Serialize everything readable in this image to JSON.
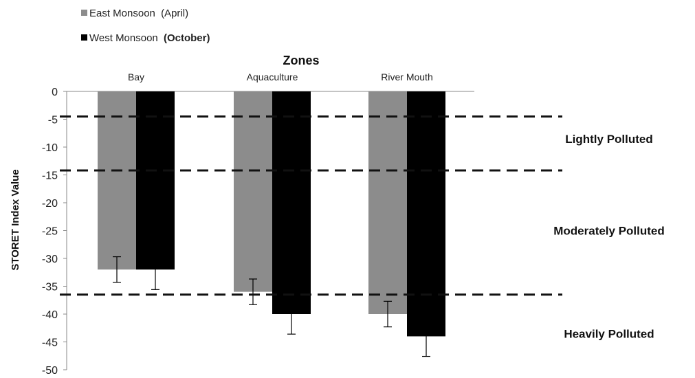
{
  "chart_data": {
    "type": "bar",
    "x_axis_title": "Zones",
    "ylabel": "STORET Index Value",
    "ylim": [
      -50,
      0
    ],
    "y_ticks": [
      0,
      -5,
      -10,
      -15,
      -20,
      -25,
      -30,
      -35,
      -40,
      -45,
      -50
    ],
    "categories": [
      "Bay",
      "Aquaculture",
      "River Mouth"
    ],
    "series": [
      {
        "name": "East Monsoon (April)",
        "legend_name_part": "East Monsoon",
        "legend_suffix": "(April)",
        "color": "#8c8c8c",
        "values": [
          -32,
          -36,
          -40
        ],
        "error": [
          2.3,
          2.3,
          2.3
        ]
      },
      {
        "name": "West Monsoon (October)",
        "legend_name_part": "West Monsoon",
        "legend_suffix": "(October)",
        "color": "#000000",
        "values": [
          -32,
          -40,
          -44
        ],
        "error": [
          3.6,
          3.6,
          3.6
        ]
      }
    ],
    "threshold_lines": [
      -4.5,
      -14.2,
      -36.5
    ],
    "zones": [
      {
        "label": "Lightly Polluted",
        "y": -8.5
      },
      {
        "label": "Moderately Polluted",
        "y": -25
      },
      {
        "label": "Heavily Polluted",
        "y": -43.5
      }
    ],
    "grid": false,
    "legend_position": "top-left"
  }
}
